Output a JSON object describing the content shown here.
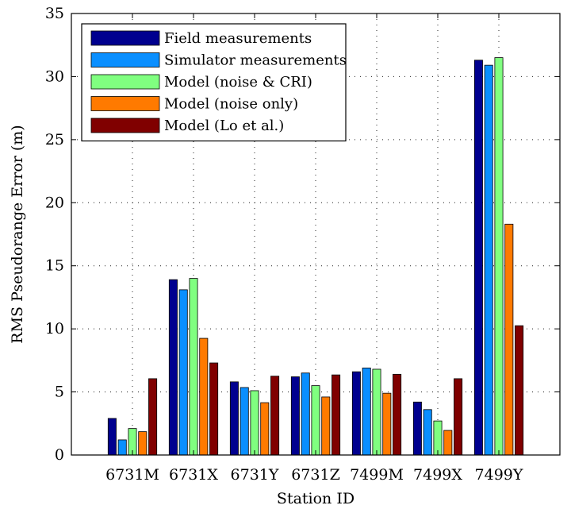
{
  "chart_data": {
    "type": "bar",
    "categories": [
      "6731M",
      "6731X",
      "6731Y",
      "6731Z",
      "7499M",
      "7499X",
      "7499Y"
    ],
    "series": [
      {
        "name": "Field measurements",
        "color": "#00008f",
        "values": [
          2.9,
          13.9,
          5.8,
          6.2,
          6.6,
          4.2,
          31.3
        ]
      },
      {
        "name": "Simulator measurements",
        "color": "#0a8fff",
        "values": [
          1.2,
          13.1,
          5.35,
          6.5,
          6.9,
          3.6,
          30.9
        ]
      },
      {
        "name": "Model (noise & CRI)",
        "color": "#80ff80",
        "values": [
          2.1,
          14.0,
          5.1,
          5.5,
          6.8,
          2.7,
          31.5
        ]
      },
      {
        "name": "Model (noise only)",
        "color": "#ff7a00",
        "values": [
          1.85,
          9.25,
          4.15,
          4.6,
          4.9,
          1.95,
          18.3
        ]
      },
      {
        "name": "Model (Lo et al.)",
        "color": "#800000",
        "values": [
          6.05,
          7.3,
          6.25,
          6.35,
          6.4,
          6.05,
          10.25
        ]
      }
    ],
    "xlabel": "Station ID",
    "ylabel": "RMS Pseudorange Error (m)",
    "ylim": [
      0,
      35
    ],
    "yticks": [
      0,
      5,
      10,
      15,
      20,
      25,
      30,
      35
    ],
    "grid": true,
    "legend_position": "top-left"
  }
}
